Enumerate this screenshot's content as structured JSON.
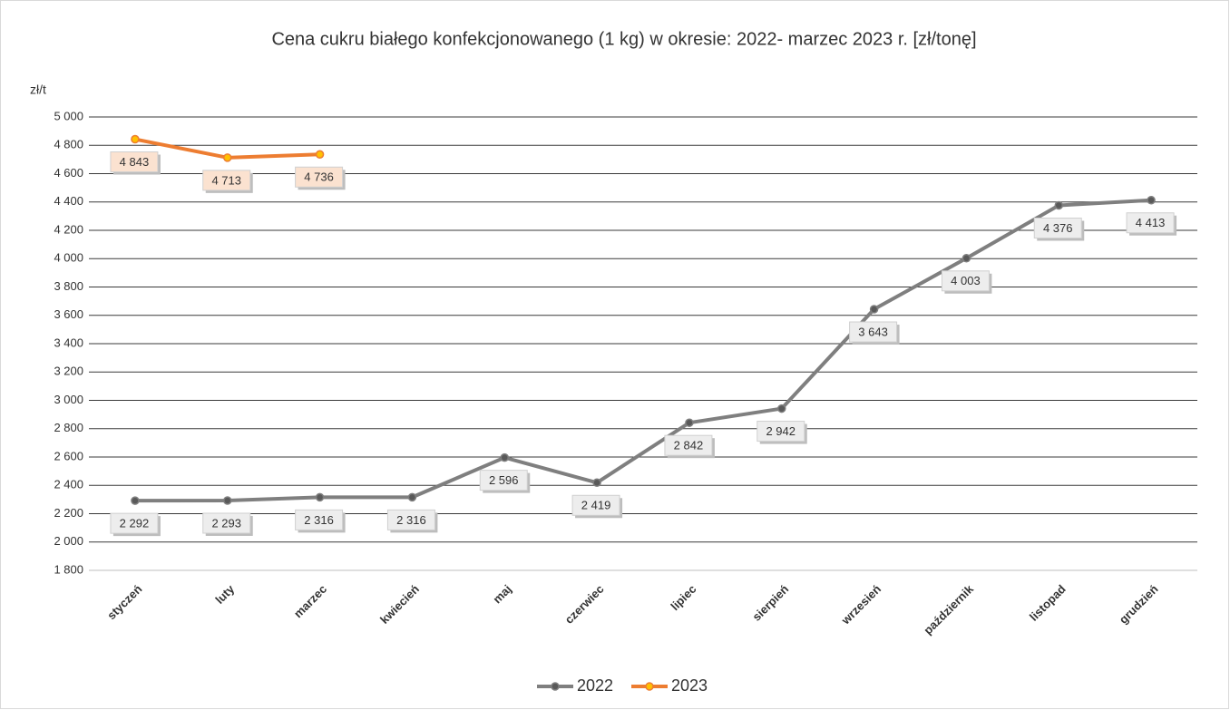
{
  "chart_data": {
    "type": "line",
    "title": "Cena cukru białego konfekcjonowanego (1 kg) w okresie: 2022- marzec 2023 r. [zł/tonę]",
    "y_label": "zł/t",
    "categories": [
      "styczeń",
      "luty",
      "marzec",
      "kwiecień",
      "maj",
      "czerwiec",
      "lipiec",
      "sierpień",
      "wrzesień",
      "październik",
      "listopad",
      "grudzień"
    ],
    "series": [
      {
        "name": "2022",
        "color": "#7f7f7f",
        "marker_color": "#595959",
        "label_fill": "#ededed",
        "values": [
          2292,
          2293,
          2316,
          2316,
          2596,
          2419,
          2842,
          2942,
          3643,
          4003,
          4376,
          4413
        ],
        "value_labels": [
          "2 292",
          "2 293",
          "2 316",
          "2 316",
          "2 596",
          "2 419",
          "2 842",
          "2 942",
          "3 643",
          "4 003",
          "4 376",
          "4 413"
        ]
      },
      {
        "name": "2023",
        "color": "#ed7d31",
        "marker_color": "#ffc000",
        "label_fill": "#fbe2d0",
        "values": [
          4843,
          4713,
          4736,
          null,
          null,
          null,
          null,
          null,
          null,
          null,
          null,
          null
        ],
        "value_labels": [
          "4 843",
          "4 713",
          "4 736",
          null,
          null,
          null,
          null,
          null,
          null,
          null,
          null,
          null
        ]
      }
    ],
    "ylim": [
      1800,
      5000
    ],
    "yticks": [
      {
        "value": 1800,
        "label": "1 800"
      },
      {
        "value": 2000,
        "label": "2 000"
      },
      {
        "value": 2200,
        "label": "2 200"
      },
      {
        "value": 2400,
        "label": "2 400"
      },
      {
        "value": 2600,
        "label": "2 600"
      },
      {
        "value": 2800,
        "label": "2 800"
      },
      {
        "value": 3000,
        "label": "3 000"
      },
      {
        "value": 3200,
        "label": "3 200"
      },
      {
        "value": 3400,
        "label": "3 400"
      },
      {
        "value": 3600,
        "label": "3 600"
      },
      {
        "value": 3800,
        "label": "3 800"
      },
      {
        "value": 4000,
        "label": "4 000"
      },
      {
        "value": 4200,
        "label": "4 200"
      },
      {
        "value": 4400,
        "label": "4 400"
      },
      {
        "value": 4600,
        "label": "4 600"
      },
      {
        "value": 4800,
        "label": "4 800"
      },
      {
        "value": 5000,
        "label": "5 000"
      }
    ],
    "grid": true,
    "legend": "bottom"
  }
}
